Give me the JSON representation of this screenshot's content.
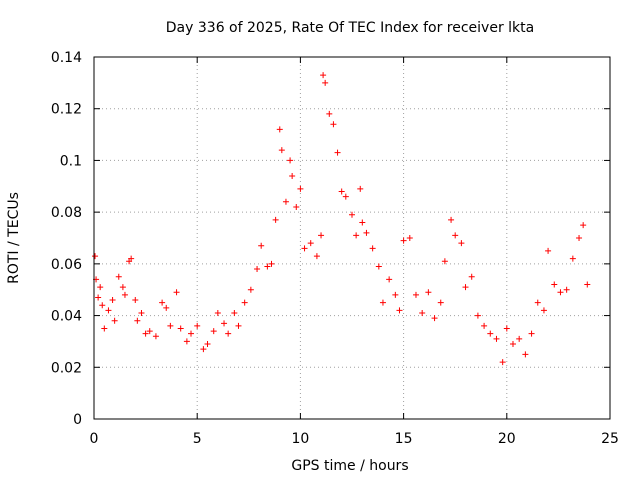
{
  "chart_data": {
    "type": "scatter",
    "title": "Day 336 of 2025, Rate Of TEC Index for receiver lkta",
    "xlabel": "GPS time / hours",
    "ylabel": "ROTI / TECUs",
    "xlim": [
      0,
      25
    ],
    "ylim": [
      0,
      0.14
    ],
    "xticks": [
      "0",
      "5",
      "10",
      "15",
      "20",
      "25"
    ],
    "yticks": [
      "0",
      "0.02",
      "0.04",
      "0.06",
      "0.08",
      "0.1",
      "0.12",
      "0.14"
    ],
    "grid": true,
    "marker": "+",
    "color": "#ff0000",
    "series": [
      {
        "name": "ROTI",
        "x": [
          0.05,
          0.1,
          0.2,
          0.3,
          0.4,
          0.5,
          0.7,
          0.9,
          1.0,
          1.2,
          1.4,
          1.5,
          1.7,
          1.8,
          2.0,
          2.1,
          2.3,
          2.5,
          2.7,
          3.0,
          3.3,
          3.5,
          3.7,
          4.0,
          4.2,
          4.5,
          4.7,
          5.0,
          5.3,
          5.5,
          5.8,
          6.0,
          6.3,
          6.5,
          6.8,
          7.0,
          7.3,
          7.6,
          7.9,
          8.1,
          8.4,
          8.6,
          8.8,
          9.0,
          9.1,
          9.3,
          9.5,
          9.6,
          9.8,
          10.0,
          10.2,
          10.5,
          10.8,
          11.0,
          11.1,
          11.2,
          11.4,
          11.6,
          11.8,
          12.0,
          12.2,
          12.5,
          12.7,
          12.9,
          13.0,
          13.2,
          13.5,
          13.8,
          14.0,
          14.3,
          14.6,
          14.8,
          15.0,
          15.3,
          15.6,
          15.9,
          16.2,
          16.5,
          16.8,
          17.0,
          17.3,
          17.5,
          17.8,
          18.0,
          18.3,
          18.6,
          18.9,
          19.2,
          19.5,
          19.8,
          20.0,
          20.3,
          20.6,
          20.9,
          21.2,
          21.5,
          21.8,
          22.0,
          22.3,
          22.6,
          22.9,
          23.2,
          23.5,
          23.7,
          23.9
        ],
        "y": [
          0.063,
          0.054,
          0.047,
          0.051,
          0.044,
          0.035,
          0.042,
          0.046,
          0.038,
          0.055,
          0.051,
          0.048,
          0.061,
          0.062,
          0.046,
          0.038,
          0.041,
          0.033,
          0.034,
          0.032,
          0.045,
          0.043,
          0.036,
          0.049,
          0.035,
          0.03,
          0.033,
          0.036,
          0.027,
          0.029,
          0.034,
          0.041,
          0.037,
          0.033,
          0.041,
          0.036,
          0.045,
          0.05,
          0.058,
          0.067,
          0.059,
          0.06,
          0.077,
          0.112,
          0.104,
          0.084,
          0.1,
          0.094,
          0.082,
          0.089,
          0.066,
          0.068,
          0.063,
          0.071,
          0.133,
          0.13,
          0.118,
          0.114,
          0.103,
          0.088,
          0.086,
          0.079,
          0.071,
          0.089,
          0.076,
          0.072,
          0.066,
          0.059,
          0.045,
          0.054,
          0.048,
          0.042,
          0.069,
          0.07,
          0.048,
          0.041,
          0.049,
          0.039,
          0.045,
          0.061,
          0.077,
          0.071,
          0.068,
          0.051,
          0.055,
          0.04,
          0.036,
          0.033,
          0.031,
          0.022,
          0.035,
          0.029,
          0.031,
          0.025,
          0.033,
          0.045,
          0.042,
          0.065,
          0.052,
          0.049,
          0.05,
          0.062,
          0.07,
          0.075,
          0.052
        ]
      }
    ]
  }
}
